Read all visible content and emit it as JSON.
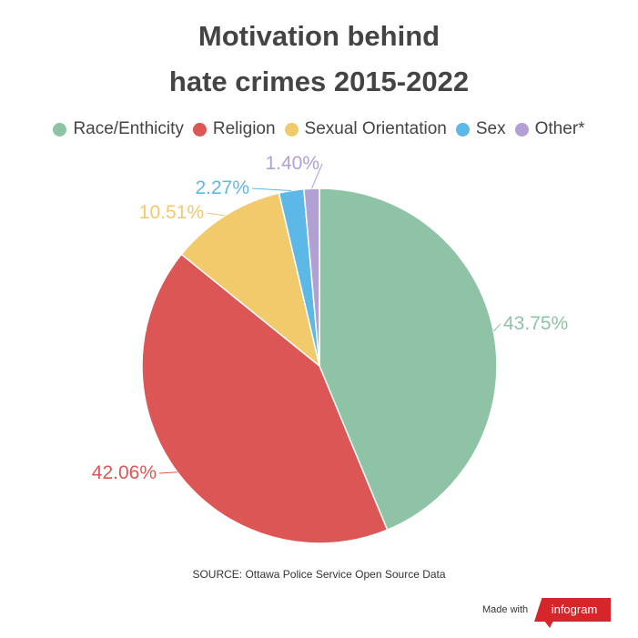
{
  "chart_data": {
    "type": "pie",
    "title": [
      "Motivation behind",
      "hate crimes 2015-2022"
    ],
    "categories": [
      "Race/Enthicity",
      "Religion",
      "Sexual Orientation",
      "Sex",
      "Other*"
    ],
    "values": [
      43.75,
      42.06,
      10.51,
      2.27,
      1.4
    ],
    "data_labels": [
      "43.75%",
      "42.06%",
      "10.51%",
      "2.27%",
      "1.40%"
    ],
    "colors": [
      "#8fc3a5",
      "#dc5656",
      "#f0ca6b",
      "#5cb8e6",
      "#b29fd3"
    ],
    "legend_position": "top",
    "source": "SOURCE: Ottawa Police Service Open Source Data"
  },
  "footer": {
    "made_with": "Made with",
    "brand": "infogram"
  }
}
